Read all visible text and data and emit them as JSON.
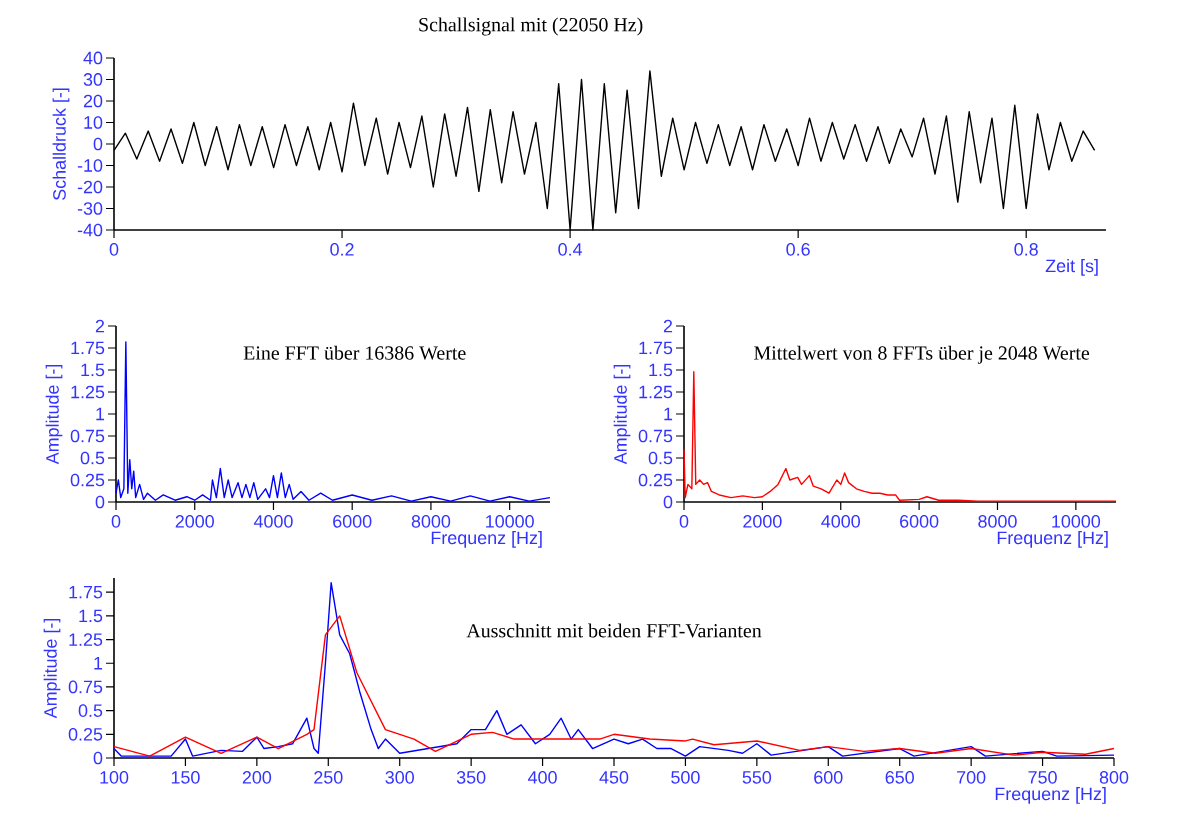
{
  "chart_data": [
    {
      "type": "line",
      "title": "Schallsignal mit (22050 Hz)",
      "xlabel": "Zeit [s]",
      "ylabel": "Schalldruck [-]",
      "x": [
        0,
        0.01,
        0.02,
        0.03,
        0.04,
        0.05,
        0.06,
        0.07,
        0.08,
        0.09,
        0.1,
        0.11,
        0.12,
        0.13,
        0.14,
        0.15,
        0.16,
        0.17,
        0.18,
        0.19,
        0.2,
        0.21,
        0.22,
        0.23,
        0.24,
        0.25,
        0.26,
        0.27,
        0.28,
        0.29,
        0.3,
        0.31,
        0.32,
        0.33,
        0.34,
        0.35,
        0.36,
        0.37,
        0.38,
        0.39,
        0.4,
        0.41,
        0.42,
        0.43,
        0.44,
        0.45,
        0.46,
        0.47,
        0.48,
        0.49,
        0.5,
        0.51,
        0.52,
        0.53,
        0.54,
        0.55,
        0.56,
        0.57,
        0.58,
        0.59,
        0.6,
        0.61,
        0.62,
        0.63,
        0.64,
        0.65,
        0.66,
        0.67,
        0.68,
        0.69,
        0.7,
        0.71,
        0.72,
        0.73,
        0.74,
        0.75,
        0.76,
        0.77,
        0.78,
        0.79,
        0.8,
        0.81,
        0.82,
        0.83,
        0.84,
        0.85,
        0.86
      ],
      "series": [
        {
          "color": "#000000",
          "values": [
            -3,
            5,
            -7,
            6,
            -8,
            7,
            -9,
            10,
            -10,
            8,
            -12,
            9,
            -10,
            8,
            -11,
            9,
            -10,
            8,
            -12,
            10,
            -13,
            19,
            -10,
            12,
            -14,
            10,
            -11,
            13,
            -20,
            14,
            -15,
            17,
            -22,
            16,
            -18,
            15,
            -14,
            10,
            -30,
            28,
            -40,
            30,
            -40,
            28,
            -32,
            25,
            -30,
            34,
            -15,
            12,
            -12,
            10,
            -9,
            9,
            -10,
            8,
            -12,
            9,
            -8,
            7,
            -10,
            12,
            -8,
            10,
            -7,
            9,
            -8,
            8,
            -9,
            7,
            -6,
            12,
            -14,
            13,
            -27,
            15,
            -18,
            12,
            -30,
            18,
            -30,
            14,
            -12,
            10,
            -8,
            6,
            -3
          ]
        }
      ],
      "xlim": [
        0,
        0.87
      ],
      "ylim": [
        -40,
        40
      ],
      "xticks": [
        0,
        0.2,
        0.4,
        0.6,
        0.8
      ],
      "yticks": [
        -40,
        -30,
        -20,
        -10,
        0,
        10,
        20,
        30,
        40
      ]
    },
    {
      "type": "line",
      "title": "Eine FFT über 16386 Werte",
      "xlabel": "Frequenz [Hz]",
      "ylabel": "Amplitude [-]",
      "x": [
        0,
        60,
        120,
        200,
        250,
        300,
        350,
        400,
        450,
        500,
        600,
        700,
        800,
        1000,
        1200,
        1500,
        1800,
        2000,
        2200,
        2400,
        2450,
        2550,
        2650,
        2750,
        2850,
        2950,
        3100,
        3200,
        3300,
        3400,
        3500,
        3600,
        3800,
        3900,
        4000,
        4100,
        4200,
        4300,
        4400,
        4500,
        4700,
        4900,
        5200,
        5500,
        6000,
        6500,
        7000,
        7500,
        8000,
        8500,
        9000,
        9500,
        10000,
        10500,
        11025
      ],
      "series": [
        {
          "color": "#0000ff",
          "values": [
            0.1,
            0.25,
            0.05,
            0.15,
            1.82,
            0.1,
            0.48,
            0.15,
            0.35,
            0.05,
            0.2,
            0.03,
            0.1,
            0.02,
            0.08,
            0.02,
            0.06,
            0.02,
            0.08,
            0.02,
            0.25,
            0.05,
            0.38,
            0.05,
            0.25,
            0.05,
            0.22,
            0.05,
            0.2,
            0.05,
            0.22,
            0.03,
            0.15,
            0.05,
            0.3,
            0.05,
            0.33,
            0.05,
            0.2,
            0.03,
            0.12,
            0.02,
            0.1,
            0.02,
            0.08,
            0.02,
            0.07,
            0.01,
            0.06,
            0.01,
            0.07,
            0.01,
            0.06,
            0.01,
            0.05
          ]
        }
      ],
      "xlim": [
        0,
        11025
      ],
      "ylim": [
        0,
        2
      ],
      "xticks": [
        0,
        2000,
        4000,
        6000,
        8000,
        10000
      ],
      "yticks": [
        0,
        0.25,
        0.5,
        0.75,
        1,
        1.25,
        1.5,
        1.75,
        2
      ]
    },
    {
      "type": "line",
      "title": "Mittelwert von 8 FFTs über je 2048 Werte",
      "xlabel": "Frequenz [Hz]",
      "ylabel": "Amplitude [-]",
      "x": [
        0,
        30,
        100,
        200,
        250,
        300,
        400,
        500,
        600,
        700,
        900,
        1200,
        1500,
        1800,
        2000,
        2200,
        2400,
        2600,
        2700,
        2900,
        3000,
        3200,
        3300,
        3500,
        3700,
        3900,
        4000,
        4100,
        4200,
        4400,
        4600,
        4800,
        5000,
        5200,
        5400,
        5500,
        6000,
        6200,
        6500,
        7000,
        7500,
        8000,
        9000,
        10000,
        11025
      ],
      "series": [
        {
          "color": "#ff0000",
          "values": [
            0.6,
            0.05,
            0.2,
            0.15,
            1.48,
            0.2,
            0.25,
            0.2,
            0.22,
            0.12,
            0.08,
            0.05,
            0.07,
            0.05,
            0.06,
            0.12,
            0.2,
            0.38,
            0.25,
            0.28,
            0.2,
            0.3,
            0.18,
            0.15,
            0.1,
            0.25,
            0.2,
            0.33,
            0.22,
            0.15,
            0.12,
            0.1,
            0.1,
            0.08,
            0.08,
            0.02,
            0.03,
            0.06,
            0.02,
            0.02,
            0.01,
            0.01,
            0.01,
            0.01,
            0.01
          ]
        }
      ],
      "xlim": [
        0,
        11025
      ],
      "ylim": [
        0,
        2
      ],
      "xticks": [
        0,
        2000,
        4000,
        6000,
        8000,
        10000
      ],
      "yticks": [
        0,
        0.25,
        0.5,
        0.75,
        1,
        1.25,
        1.5,
        1.75,
        2
      ]
    },
    {
      "type": "line",
      "title": "Ausschnitt mit beiden FFT-Varianten",
      "xlabel": "Frequenz [Hz]",
      "ylabel": "Amplitude [-]",
      "series": [
        {
          "color": "#0000ff",
          "x": [
            100,
            105,
            140,
            150,
            155,
            175,
            190,
            200,
            205,
            215,
            225,
            235,
            240,
            243,
            248,
            252,
            258,
            265,
            272,
            280,
            285,
            290,
            300,
            320,
            340,
            350,
            360,
            368,
            375,
            385,
            395,
            405,
            413,
            420,
            425,
            435,
            450,
            460,
            470,
            480,
            490,
            500,
            510,
            530,
            540,
            550,
            560,
            600,
            610,
            650,
            660,
            700,
            710,
            750,
            760,
            800
          ],
          "values": [
            0.1,
            0.02,
            0.02,
            0.2,
            0.02,
            0.08,
            0.07,
            0.22,
            0.1,
            0.12,
            0.15,
            0.42,
            0.1,
            0.05,
            1.0,
            1.85,
            1.3,
            1.1,
            0.7,
            0.3,
            0.1,
            0.2,
            0.05,
            0.1,
            0.15,
            0.3,
            0.3,
            0.5,
            0.25,
            0.35,
            0.15,
            0.25,
            0.42,
            0.2,
            0.3,
            0.1,
            0.2,
            0.15,
            0.2,
            0.1,
            0.1,
            0.02,
            0.12,
            0.08,
            0.05,
            0.15,
            0.03,
            0.12,
            0.02,
            0.1,
            0.02,
            0.12,
            0.02,
            0.07,
            0.02,
            0.03
          ]
        },
        {
          "color": "#ff0000",
          "x": [
            100,
            125,
            150,
            175,
            200,
            215,
            235,
            240,
            248,
            258,
            270,
            290,
            310,
            325,
            350,
            365,
            380,
            420,
            440,
            450,
            475,
            500,
            505,
            520,
            550,
            580,
            600,
            625,
            650,
            675,
            700,
            730,
            750,
            780,
            800
          ],
          "values": [
            0.12,
            0.02,
            0.22,
            0.05,
            0.22,
            0.1,
            0.25,
            0.3,
            1.3,
            1.5,
            0.9,
            0.3,
            0.2,
            0.07,
            0.25,
            0.27,
            0.2,
            0.2,
            0.2,
            0.25,
            0.2,
            0.18,
            0.2,
            0.14,
            0.18,
            0.08,
            0.12,
            0.07,
            0.1,
            0.05,
            0.1,
            0.03,
            0.06,
            0.04,
            0.1
          ]
        }
      ],
      "xlim": [
        100,
        800
      ],
      "ylim": [
        0,
        1.9
      ],
      "xticks": [
        100,
        150,
        200,
        250,
        300,
        350,
        400,
        450,
        500,
        550,
        600,
        650,
        700,
        750,
        800
      ],
      "yticks": [
        0,
        0.25,
        0.5,
        0.75,
        1,
        1.25,
        1.5,
        1.75
      ]
    }
  ]
}
